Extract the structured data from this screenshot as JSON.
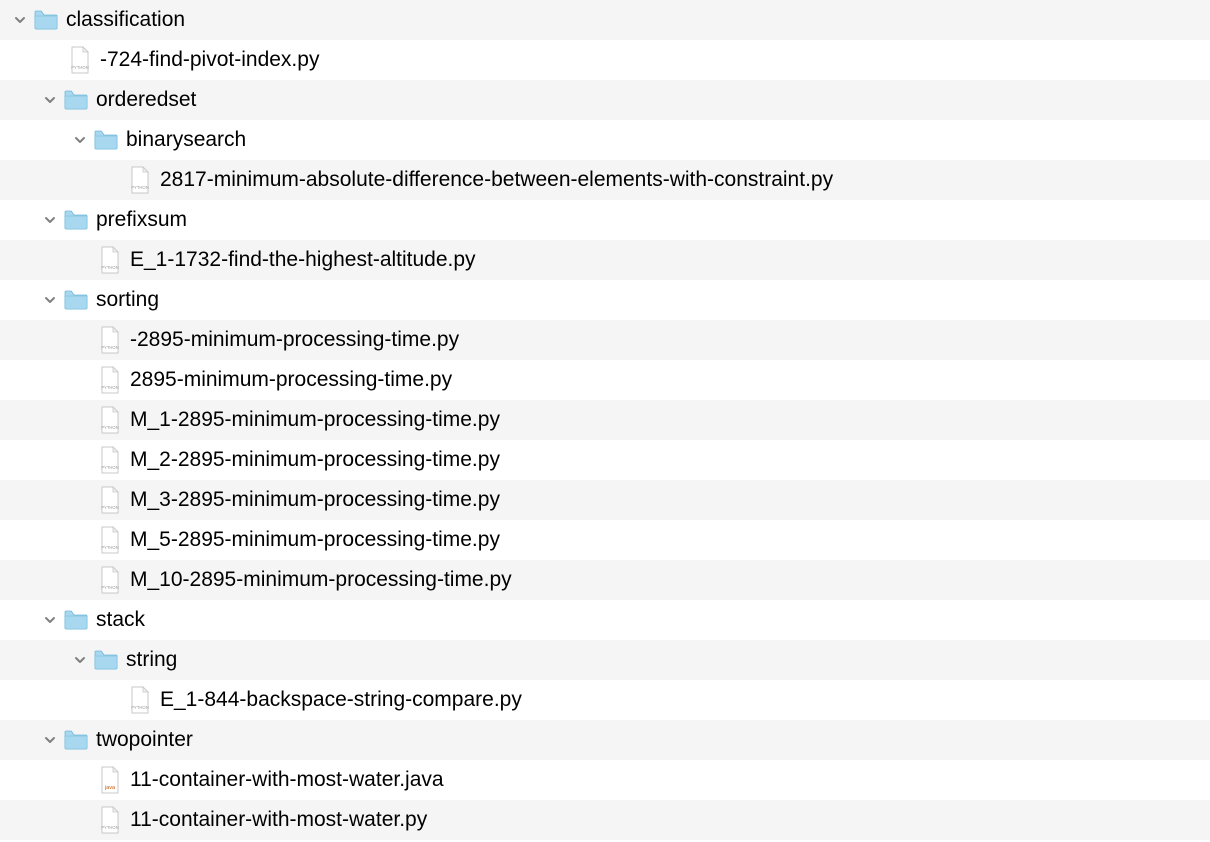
{
  "colors": {
    "text": "#000000",
    "rowAlt": "#f5f5f5",
    "rowBg": "#ffffff",
    "chevron": "#808080",
    "folderFill": "#a8d8f0",
    "folderTop": "#88c8e8",
    "folderStroke": "#70b8d8",
    "fileFill": "#ffffff",
    "fileStroke": "#c8c8c8",
    "pythonText": "#999999",
    "javaText": "#cc5500"
  },
  "items": [
    {
      "type": "folder",
      "name": "classification",
      "depth": 0,
      "collapsed": false,
      "alt": true
    },
    {
      "type": "file",
      "name": "-724-find-pivot-index.py",
      "lang": "python",
      "depth": 1,
      "alt": false
    },
    {
      "type": "folder",
      "name": "orderedset",
      "depth": 1,
      "collapsed": false,
      "alt": true
    },
    {
      "type": "folder",
      "name": "binarysearch",
      "depth": 2,
      "collapsed": false,
      "alt": false
    },
    {
      "type": "file",
      "name": "2817-minimum-absolute-difference-between-elements-with-constraint.py",
      "lang": "python",
      "depth": 3,
      "alt": true
    },
    {
      "type": "folder",
      "name": "prefixsum",
      "depth": 1,
      "collapsed": false,
      "alt": false
    },
    {
      "type": "file",
      "name": "E_1-1732-find-the-highest-altitude.py",
      "lang": "python",
      "depth": 2,
      "alt": true
    },
    {
      "type": "folder",
      "name": "sorting",
      "depth": 1,
      "collapsed": false,
      "alt": false
    },
    {
      "type": "file",
      "name": "-2895-minimum-processing-time.py",
      "lang": "python",
      "depth": 2,
      "alt": true
    },
    {
      "type": "file",
      "name": "2895-minimum-processing-time.py",
      "lang": "python",
      "depth": 2,
      "alt": false
    },
    {
      "type": "file",
      "name": "M_1-2895-minimum-processing-time.py",
      "lang": "python",
      "depth": 2,
      "alt": true
    },
    {
      "type": "file",
      "name": "M_2-2895-minimum-processing-time.py",
      "lang": "python",
      "depth": 2,
      "alt": false
    },
    {
      "type": "file",
      "name": "M_3-2895-minimum-processing-time.py",
      "lang": "python",
      "depth": 2,
      "alt": true
    },
    {
      "type": "file",
      "name": "M_5-2895-minimum-processing-time.py",
      "lang": "python",
      "depth": 2,
      "alt": false
    },
    {
      "type": "file",
      "name": "M_10-2895-minimum-processing-time.py",
      "lang": "python",
      "depth": 2,
      "alt": true
    },
    {
      "type": "folder",
      "name": "stack",
      "depth": 1,
      "collapsed": false,
      "alt": false
    },
    {
      "type": "folder",
      "name": "string",
      "depth": 2,
      "collapsed": false,
      "alt": true
    },
    {
      "type": "file",
      "name": "E_1-844-backspace-string-compare.py",
      "lang": "python",
      "depth": 3,
      "alt": false
    },
    {
      "type": "folder",
      "name": "twopointer",
      "depth": 1,
      "collapsed": false,
      "alt": true
    },
    {
      "type": "file",
      "name": "11-container-with-most-water.java",
      "lang": "java",
      "depth": 2,
      "alt": false
    },
    {
      "type": "file",
      "name": "11-container-with-most-water.py",
      "lang": "python",
      "depth": 2,
      "alt": true
    }
  ]
}
